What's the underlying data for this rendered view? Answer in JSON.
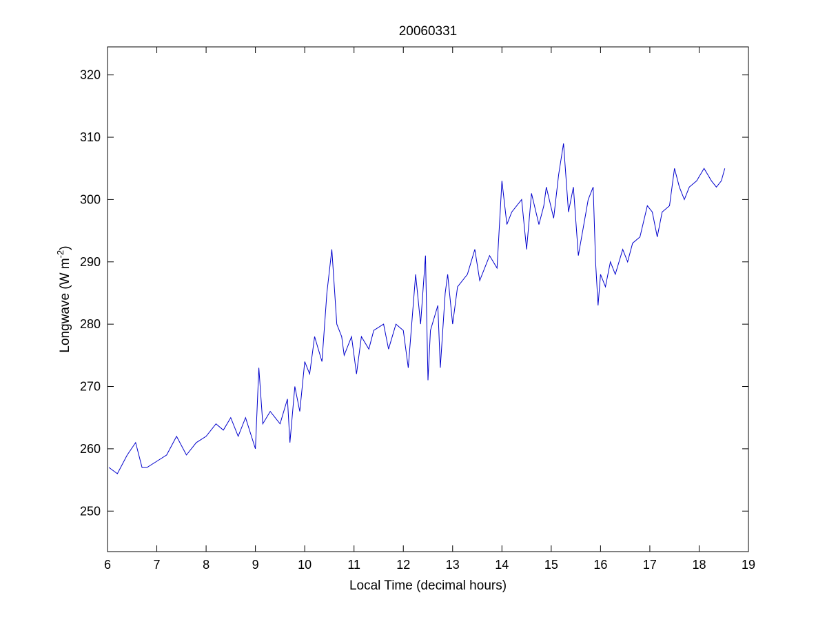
{
  "chart_data": {
    "type": "line",
    "title": "20060331",
    "xlabel": "Local Time (decimal hours)",
    "ylabel": {
      "main": "Longwave (W m",
      "superscript": "-2",
      "close": ")"
    },
    "xlim": [
      6,
      19
    ],
    "ylim": [
      243.5,
      324.5
    ],
    "xticks": [
      6,
      7,
      8,
      9,
      10,
      11,
      12,
      13,
      14,
      15,
      16,
      17,
      18,
      19
    ],
    "yticks": [
      250,
      260,
      270,
      280,
      290,
      300,
      310,
      320
    ],
    "grid": false,
    "series": [
      {
        "color": "#0000cc",
        "x": [
          6.03,
          6.2,
          6.4,
          6.57,
          6.7,
          6.8,
          7.0,
          7.2,
          7.4,
          7.6,
          7.8,
          8.0,
          8.2,
          8.35,
          8.5,
          8.65,
          8.8,
          9.0,
          9.07,
          9.15,
          9.3,
          9.5,
          9.65,
          9.7,
          9.8,
          9.9,
          10.0,
          10.1,
          10.2,
          10.35,
          10.45,
          10.55,
          10.65,
          10.75,
          10.8,
          10.95,
          11.05,
          11.15,
          11.3,
          11.4,
          11.6,
          11.7,
          11.85,
          12.0,
          12.1,
          12.25,
          12.35,
          12.45,
          12.5,
          12.55,
          12.7,
          12.75,
          12.85,
          12.9,
          13.0,
          13.1,
          13.3,
          13.45,
          13.55,
          13.75,
          13.9,
          14.0,
          14.1,
          14.2,
          14.4,
          14.5,
          14.6,
          14.75,
          14.85,
          14.9,
          15.05,
          15.15,
          15.25,
          15.35,
          15.45,
          15.55,
          15.75,
          15.85,
          15.9,
          15.95,
          16.0,
          16.1,
          16.2,
          16.3,
          16.45,
          16.55,
          16.65,
          16.8,
          16.95,
          17.05,
          17.15,
          17.25,
          17.4,
          17.5,
          17.6,
          17.7,
          17.8,
          17.95,
          18.1,
          18.25,
          18.35,
          18.45,
          18.52
        ],
        "y": [
          257,
          256,
          259,
          261,
          257,
          257,
          258,
          259,
          262,
          259,
          261,
          262,
          264,
          263,
          265,
          262,
          265,
          260,
          273,
          264,
          266,
          264,
          268,
          261,
          270,
          266,
          274,
          272,
          278,
          274,
          285,
          292,
          280,
          278,
          275,
          278,
          272,
          278,
          276,
          279,
          280,
          276,
          280,
          279,
          273,
          288,
          280,
          291,
          271,
          279,
          283,
          273,
          285,
          288,
          280,
          286,
          288,
          292,
          287,
          291,
          289,
          303,
          296,
          298,
          300,
          292,
          301,
          296,
          299,
          302,
          297,
          304,
          309,
          298,
          302,
          291,
          300,
          302,
          290,
          283,
          288,
          286,
          290,
          288,
          292,
          290,
          293,
          294,
          299,
          298,
          294,
          298,
          299,
          305,
          302,
          300,
          302,
          303,
          305,
          303,
          302,
          303,
          305
        ]
      }
    ]
  }
}
